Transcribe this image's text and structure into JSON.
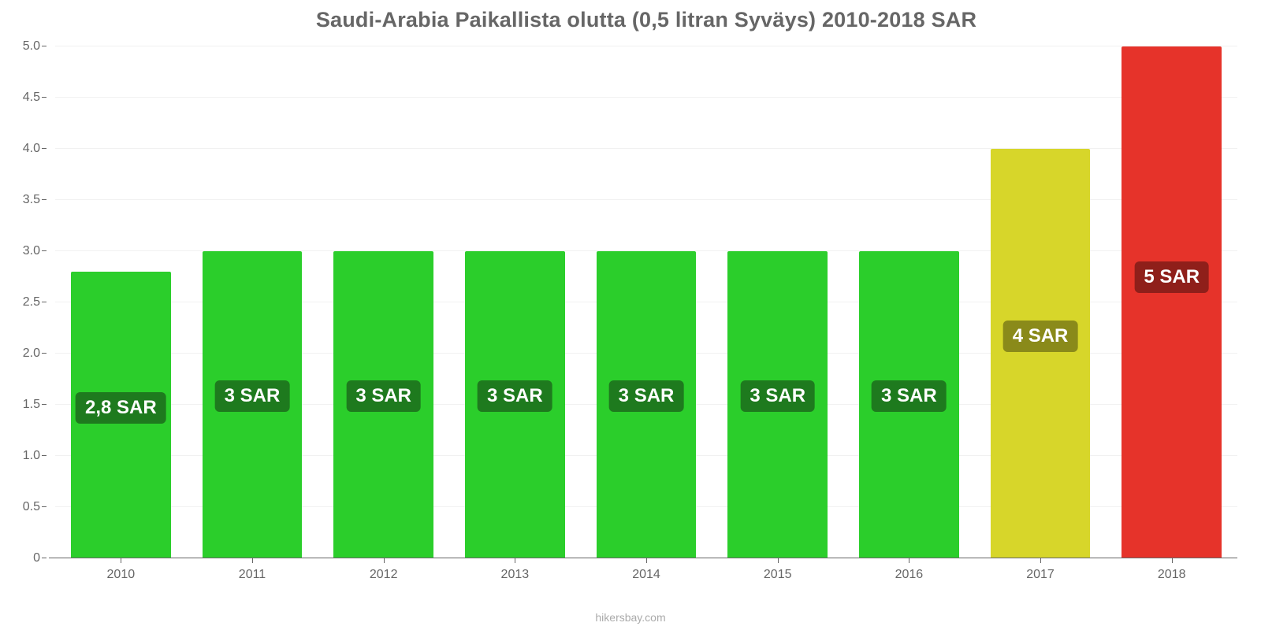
{
  "chart": {
    "type": "bar",
    "title": "Saudi-Arabia Paikallista olutta (0,5 litran Syväys) 2010-2018 SAR",
    "title_color": "#666666",
    "title_fontsize": 27,
    "background_color": "#ffffff",
    "grid_color": "#f1f1f1",
    "axis_color": "#666666",
    "tick_label_color": "#666666",
    "tick_fontsize": 16,
    "ylim_min": 0,
    "ylim_max": 5.0,
    "ytick_step": 0.5,
    "y_ticks": [
      "0",
      "0.5",
      "1.0",
      "1.5",
      "2.0",
      "2.5",
      "3.0",
      "3.5",
      "4.0",
      "4.5",
      "5.0"
    ],
    "bar_width_ratio": 0.76,
    "categories": [
      "2010",
      "2011",
      "2012",
      "2013",
      "2014",
      "2015",
      "2016",
      "2017",
      "2018"
    ],
    "values": [
      2.8,
      3,
      3,
      3,
      3,
      3,
      3,
      4,
      5
    ],
    "bar_colors": [
      "#2bce2b",
      "#2bce2b",
      "#2bce2b",
      "#2bce2b",
      "#2bce2b",
      "#2bce2b",
      "#2bce2b",
      "#d7d62a",
      "#e6332a"
    ],
    "value_labels": [
      "2,8 SAR",
      "3 SAR",
      "3 SAR",
      "3 SAR",
      "3 SAR",
      "3 SAR",
      "3 SAR",
      "4 SAR",
      "5 SAR"
    ],
    "value_label_bg": [
      "#1e7a1e",
      "#1e7a1e",
      "#1e7a1e",
      "#1e7a1e",
      "#1e7a1e",
      "#1e7a1e",
      "#1e7a1e",
      "#8a8a1a",
      "#8f1f1a"
    ],
    "value_label_fontsize": 24,
    "value_label_color": "#ffffff",
    "attribution": "hikersbay.com",
    "attribution_color": "#aaaaaa"
  }
}
